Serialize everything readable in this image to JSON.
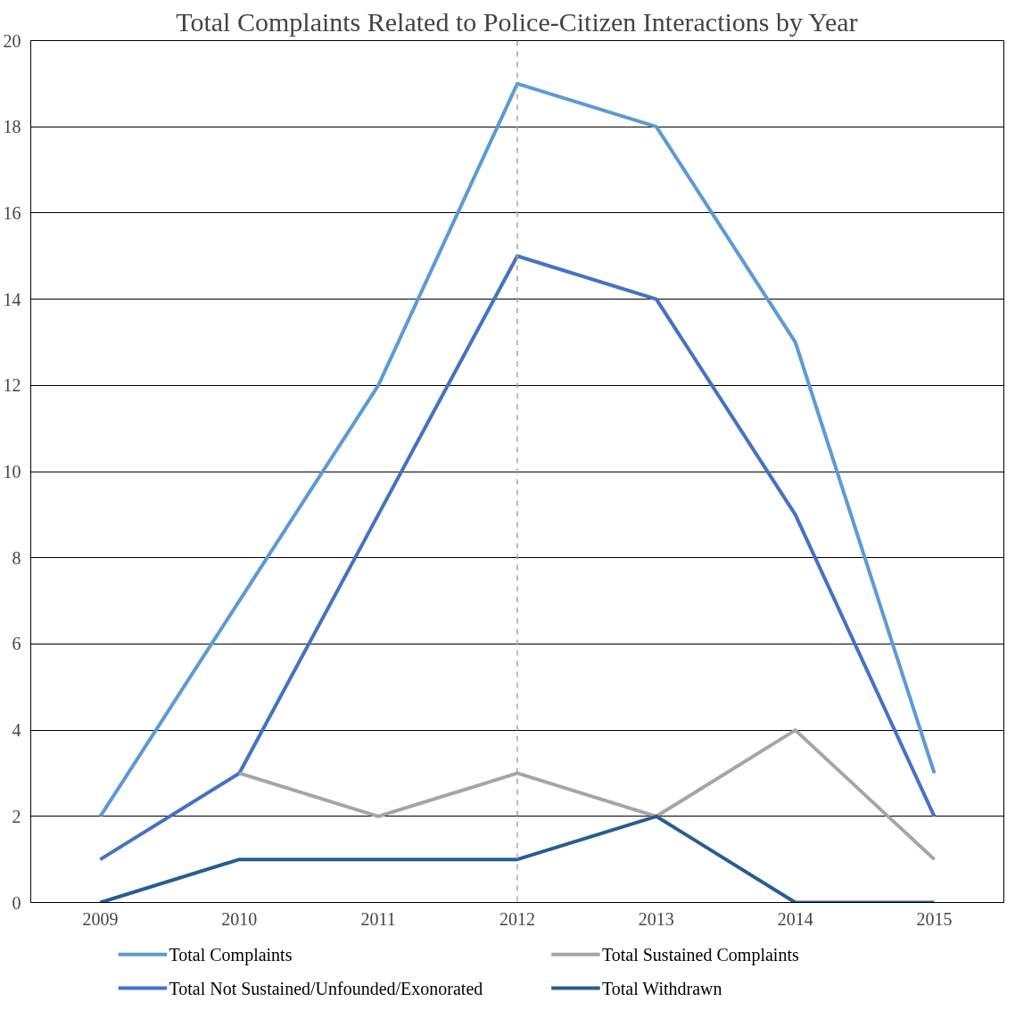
{
  "chart_data": {
    "type": "line",
    "title": "Total Complaints Related to Police-Citizen Interactions by Year",
    "categories": [
      "2009",
      "2010",
      "2011",
      "2012",
      "2013",
      "2014",
      "2015"
    ],
    "series": [
      {
        "name": "Total Complaints",
        "color": "#5b9bd5",
        "values": [
          2,
          7,
          12,
          19,
          18,
          13,
          3
        ]
      },
      {
        "name": "Total Not Sustained/Unfounded/Exonorated",
        "color": "#4472c4",
        "values": [
          1,
          3,
          9,
          15,
          14,
          9,
          2
        ]
      },
      {
        "name": "Total Sustained Complaints",
        "color": "#a5a5a5",
        "values": [
          null,
          3,
          2,
          3,
          2,
          4,
          1
        ]
      },
      {
        "name": "Total Withdrawn",
        "color": "#255e91",
        "values": [
          0,
          1,
          1,
          1,
          2,
          0,
          0
        ]
      }
    ],
    "ylim": [
      0,
      20
    ],
    "yticks": [
      0,
      2,
      4,
      6,
      8,
      10,
      12,
      14,
      16,
      18,
      20
    ],
    "grid": "y",
    "legend": "bottom",
    "marker": "none",
    "line_style": "solid",
    "ref_lines": [
      {
        "axis": "x",
        "value": "2012",
        "color": "#a5a5a5",
        "line_style": "dashed"
      }
    ]
  }
}
